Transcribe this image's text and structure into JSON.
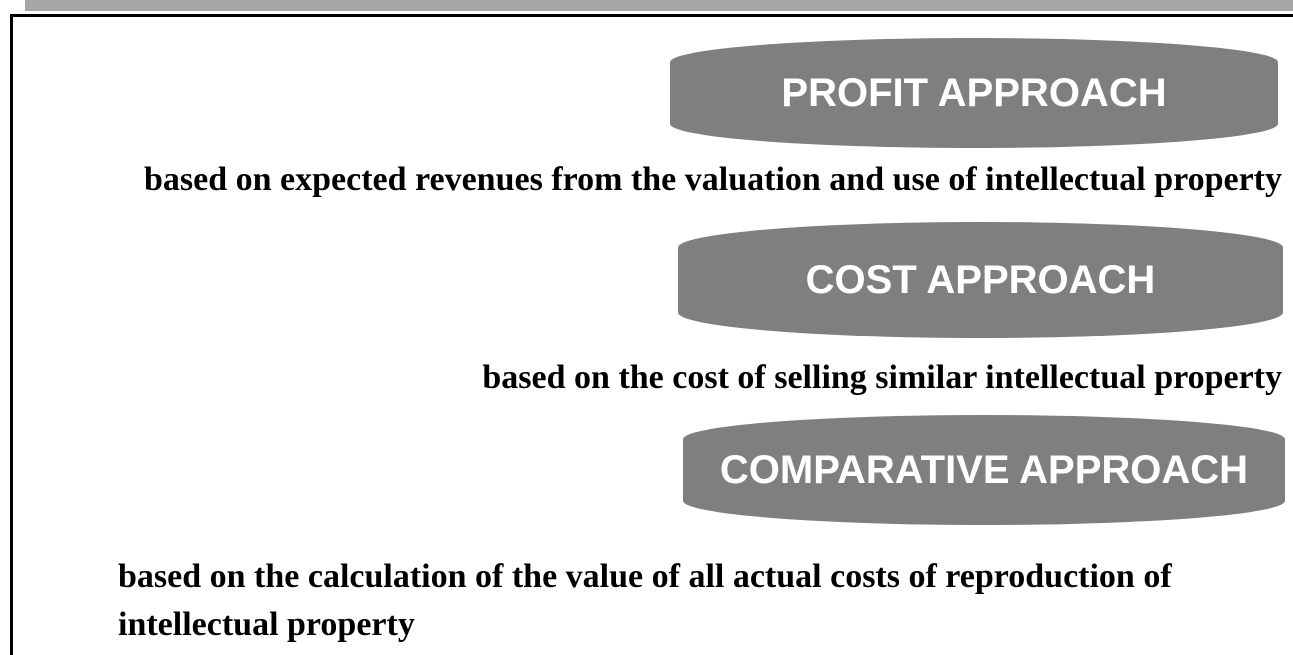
{
  "approaches": [
    {
      "label": "PROFIT APPROACH",
      "description": "based on expected revenues from the valuation and use of intellectual property"
    },
    {
      "label": "COST APPROACH",
      "description": "based on the cost of selling similar intellectual property"
    },
    {
      "label": "COMPARATIVE APPROACH",
      "description": "based on the calculation of the value of all actual costs of reproduction of intellectual property"
    }
  ]
}
